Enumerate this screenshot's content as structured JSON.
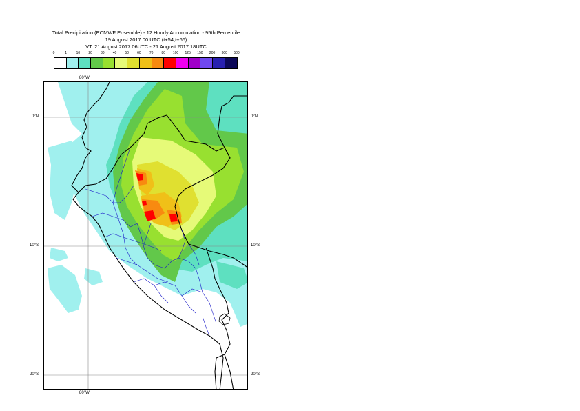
{
  "title": {
    "line1": "Total Precipitation (ECMWF Ensemble) - 12 Hourly Accumulation - 95th Percentile",
    "line2": "19 August 2017 00 UTC (t+54,t+66)",
    "line3": "VT: 21 August 2017 06UTC - 21 August 2017 18UTC"
  },
  "legend": {
    "labels": [
      "0",
      "1",
      "10",
      "20",
      "30",
      "40",
      "50",
      "60",
      "70",
      "80",
      "100",
      "125",
      "150",
      "200",
      "300",
      "500"
    ],
    "colors": [
      "#ffffff",
      "#a0f0ee",
      "#5ee0c0",
      "#62c84a",
      "#98e030",
      "#e6fa78",
      "#e0e030",
      "#f0c018",
      "#f88a10",
      "#ff0000",
      "#f000f0",
      "#a000c8",
      "#7048f0",
      "#2820b0",
      "#0c0858"
    ]
  },
  "map": {
    "lon_labels": {
      "top": "80°W",
      "bottom": "80°W"
    },
    "lat_labels": {
      "left": [
        "0°N",
        "10°S",
        "20°S"
      ],
      "right": [
        "0°N",
        "10°S",
        "20°S"
      ]
    }
  }
}
